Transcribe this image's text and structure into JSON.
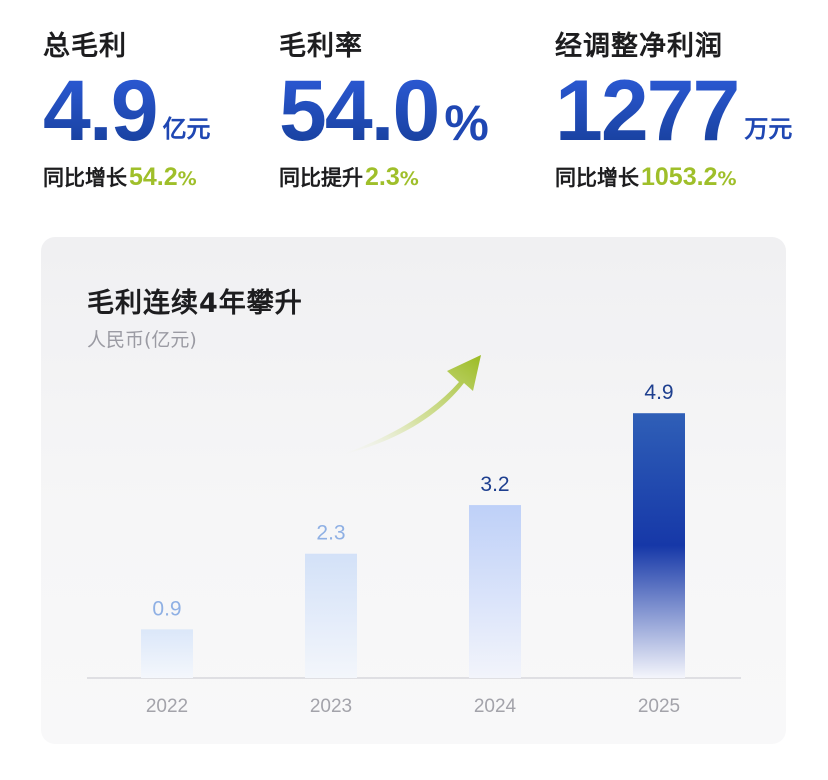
{
  "kpis": [
    {
      "label": "总毛利",
      "value": "4.9",
      "unit": "亿元",
      "delta_label": "同比增长",
      "delta_value": "54.2",
      "delta_pct": "%"
    },
    {
      "label": "毛利率",
      "value": "54.0",
      "unit": "%",
      "delta_label": "同比提升",
      "delta_value": "2.3",
      "delta_pct": "%"
    },
    {
      "label": "经调整净利润",
      "value": "1277",
      "unit": "万元",
      "delta_label": "同比增长",
      "delta_value": "1053.2",
      "delta_pct": "%"
    }
  ],
  "colors": {
    "primary_blue": "#1f47b3",
    "accent_green": "#9fbf2a",
    "text_dark": "#1d1d1f",
    "muted": "#9b9ba3"
  },
  "chart_data": {
    "type": "bar",
    "title": "毛利连续4年攀升",
    "subtitle": "人民币(亿元)",
    "categories": [
      "2022",
      "2023",
      "2024",
      "2025"
    ],
    "values": [
      0.9,
      2.3,
      3.2,
      4.9
    ],
    "value_labels": [
      "0.9",
      "2.3",
      "3.2",
      "4.9"
    ],
    "ylim": [
      0,
      5.2
    ],
    "grid": false,
    "legend": "none",
    "annotation": "upward-arrow-icon"
  }
}
